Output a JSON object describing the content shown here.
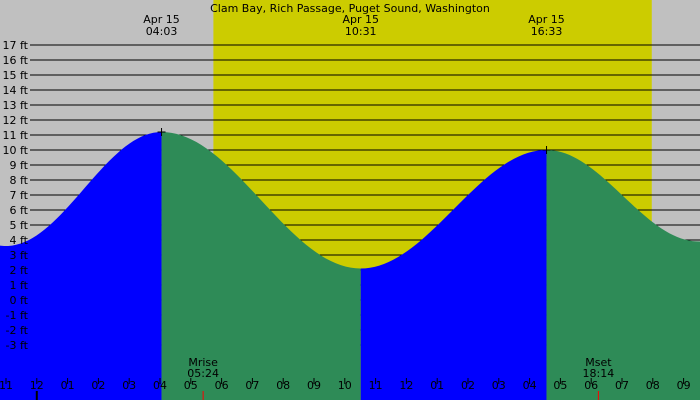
{
  "chart_data": {
    "type": "area",
    "title": "Clam Bay, Rich Passage, Puget Sound, Washington",
    "y_unit": "ft",
    "ylim": [
      -4,
      18
    ],
    "y_ticks": [
      -3,
      -2,
      -1,
      0,
      1,
      2,
      3,
      4,
      5,
      6,
      7,
      8,
      9,
      10,
      11,
      12,
      13,
      14,
      15,
      16,
      17
    ],
    "x_hours": [
      11,
      12,
      1,
      2,
      3,
      4,
      5,
      6,
      7,
      8,
      9,
      10,
      11,
      12,
      1,
      2,
      3,
      4,
      5,
      6,
      7,
      8,
      9
    ],
    "x_hour_labels": [
      "11",
      "12",
      "01",
      "02",
      "03",
      "04",
      "05",
      "06",
      "07",
      "08",
      "09",
      "10",
      "11",
      "12",
      "01",
      "02",
      "03",
      "04",
      "05",
      "06",
      "07",
      "08",
      "09"
    ],
    "daylight": {
      "start": "05:44",
      "end": "19:58"
    },
    "series": [
      {
        "name": "",
        "color": "#0000ff",
        "segment": "rising"
      },
      {
        "name": "",
        "color": "#2e8b57",
        "segment": "falling"
      }
    ],
    "tide_points": [
      {
        "time": "Apr 14 23:00",
        "height": 3.6
      },
      {
        "time": "Apr 15 04:03",
        "height": 11.2,
        "type": "high"
      },
      {
        "time": "Apr 15 10:31",
        "height": 2.1,
        "type": "low"
      },
      {
        "time": "Apr 15 16:33",
        "height": 10.0,
        "type": "high"
      },
      {
        "time": "Apr 15 21:30",
        "height": 3.9
      }
    ],
    "extremes": [
      {
        "date": "Apr 15",
        "time": "04:03",
        "type": "high"
      },
      {
        "date": "Apr 15",
        "time": "10:31",
        "type": "low"
      },
      {
        "date": "Apr 15",
        "time": "16:33",
        "type": "high"
      }
    ],
    "moon": [
      {
        "label": "Mrise",
        "time": "05:24"
      },
      {
        "label": "Mset",
        "time": "18:14"
      }
    ],
    "colors": {
      "night": "#c0c0c0",
      "day": "#cccc00",
      "rising": "#0000ff",
      "falling": "#2e8b57",
      "grid": "#000000",
      "moon_tick": "#ff0000"
    }
  }
}
